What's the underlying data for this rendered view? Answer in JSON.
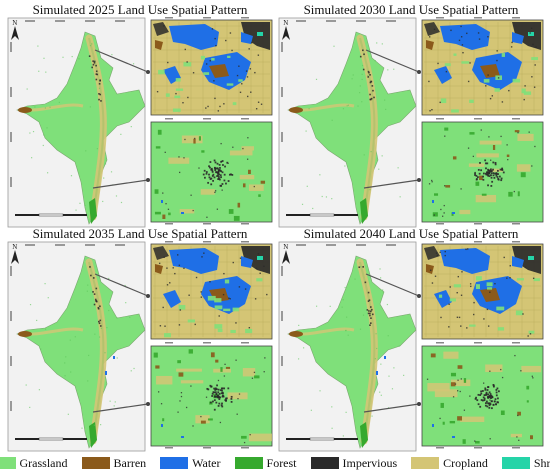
{
  "panels": [
    {
      "title": "Simulated 2025 Land Use Spatial Pattern"
    },
    {
      "title": "Simulated 2030 Land Use Spatial Pattern"
    },
    {
      "title": "Simulated 2035 Land Use Spatial Pattern"
    },
    {
      "title": "Simulated 2040 Land Use Spatial Pattern"
    }
  ],
  "north_label": "N",
  "legend": [
    {
      "label": "Grassland",
      "color": "#7fe07a"
    },
    {
      "label": "Barren",
      "color": "#8b5a1b"
    },
    {
      "label": "Water",
      "color": "#1f6fe6"
    },
    {
      "label": "Forest",
      "color": "#36a92e"
    },
    {
      "label": "Impervious",
      "color": "#2a2a2a"
    },
    {
      "label": "Cropland",
      "color": "#d4c575"
    },
    {
      "label": "Shrub",
      "color": "#25d4a8"
    }
  ]
}
